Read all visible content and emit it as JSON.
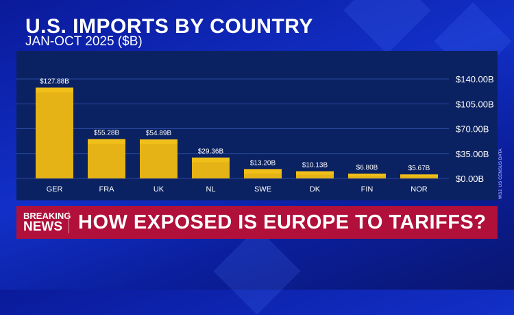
{
  "header": {
    "title": "U.S. IMPORTS BY COUNTRY",
    "subtitle": "JAN-OCT 2025 ($B)"
  },
  "source": "WSJ, US CENSUS DATA",
  "banner": {
    "tag_line1": "BREAKING",
    "tag_line2": "NEWS",
    "headline": "HOW EXPOSED IS EUROPE TO TARIFFS?"
  },
  "colors": {
    "bar": "#f0bf1a",
    "panel": "#0b2262",
    "banner": "#b0103a"
  },
  "chart_data": {
    "type": "bar",
    "title": "U.S. IMPORTS BY COUNTRY",
    "subtitle": "JAN-OCT 2025 ($B)",
    "categories": [
      "GER",
      "FRA",
      "UK",
      "NL",
      "SWE",
      "DK",
      "FIN",
      "NOR"
    ],
    "values": [
      127.88,
      55.28,
      54.89,
      29.36,
      13.2,
      10.13,
      6.8,
      5.67
    ],
    "value_labels": [
      "$127.88B",
      "$55.28B",
      "$54.89B",
      "$29.36B",
      "$13.20B",
      "$10.13B",
      "$6.80B",
      "$5.67B"
    ],
    "yticks": [
      0,
      35,
      70,
      105,
      140
    ],
    "ytick_labels": [
      "$0.00B",
      "$35.00B",
      "$70.00B",
      "$105.00B",
      "$140.00B"
    ],
    "ylim": [
      0,
      140
    ],
    "y_axis_position": "right",
    "grid": true
  }
}
